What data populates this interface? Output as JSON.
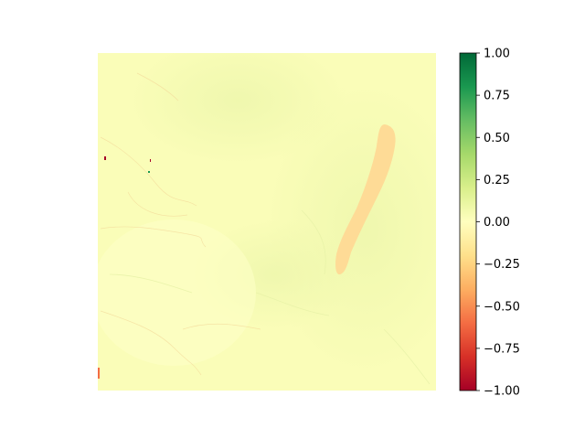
{
  "chart_data": {
    "type": "heatmap",
    "title": "",
    "xlabel": "",
    "ylabel": "",
    "axes_visible": false,
    "colormap": "RdYlGn",
    "vmin": -1.0,
    "vmax": 1.0,
    "background_value": 0.05,
    "colorbar": {
      "position": "right",
      "ticks": [
        1.0,
        0.75,
        0.5,
        0.25,
        0.0,
        -0.25,
        -0.5,
        -0.75,
        -1.0
      ],
      "tick_labels": [
        "1.00",
        "0.75",
        "0.50",
        "0.25",
        "0.00",
        "−0.25",
        "−0.50",
        "−0.75",
        "−1.00"
      ]
    },
    "colors": {
      "low": "#a50026",
      "mid": "#ffffbf",
      "high": "#006837",
      "field": "#fafdb8",
      "greener_zone": "#f1f8b2",
      "anomaly_strip": "#fed995"
    },
    "features": [
      {
        "name": "negative-strip",
        "value": -0.25,
        "description_shown": false
      }
    ]
  }
}
